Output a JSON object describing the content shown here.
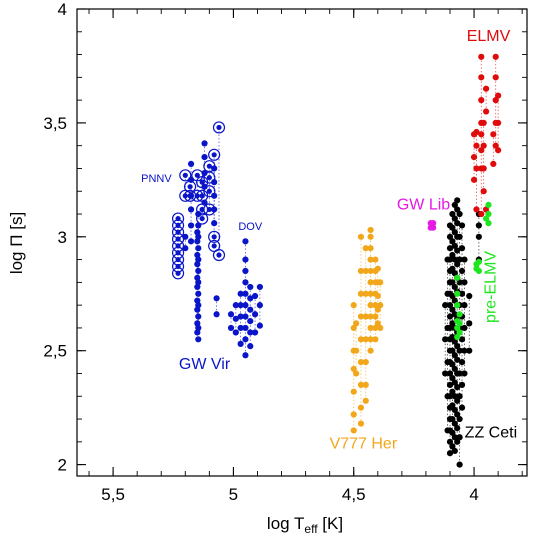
{
  "chart_data": {
    "type": "scatter",
    "title": "",
    "xlabel": "log T",
    "xlabel_sub": "eff",
    "xlabel_unit": " [K]",
    "ylabel": "log Π [s]",
    "xlim": [
      5.65,
      3.78
    ],
    "ylim": [
      1.95,
      4.0
    ],
    "x_reversed": true,
    "grid": false,
    "x_ticks": [
      {
        "value": 5.5,
        "label": "5,5"
      },
      {
        "value": 5.0,
        "label": "5"
      },
      {
        "value": 4.5,
        "label": "4,5"
      },
      {
        "value": 4.0,
        "label": "4"
      }
    ],
    "y_ticks": [
      {
        "value": 2.0,
        "label": "2"
      },
      {
        "value": 2.5,
        "label": "2,5"
      },
      {
        "value": 3.0,
        "label": "3"
      },
      {
        "value": 3.5,
        "label": "3,5"
      },
      {
        "value": 4.0,
        "label": "4"
      }
    ],
    "series": [
      {
        "name": "GW Vir",
        "color": "#0a14c8",
        "columns": [
          {
            "x": 5.146,
            "y": [
              2.55,
              2.6,
              2.65,
              2.7,
              2.75,
              2.8,
              2.85,
              2.9,
              2.95,
              3.0,
              3.05,
              3.1
            ]
          },
          {
            "x": 5.15,
            "y": [
              2.58,
              2.62,
              2.68,
              2.72,
              2.78,
              2.82,
              2.88,
              2.92,
              2.98,
              3.02
            ]
          },
          {
            "x": 5.176,
            "y": [
              2.98,
              3.05,
              3.12,
              3.18,
              3.25,
              3.32
            ]
          },
          {
            "x": 5.12,
            "y": [
              3.15,
              3.22,
              3.28,
              3.35,
              3.41
            ]
          },
          {
            "x": 5.08,
            "y": [
              3.06,
              3.12,
              3.18,
              3.24,
              3.3
            ]
          },
          {
            "x": 5.2,
            "y": [
              3.0,
              2.95
            ]
          },
          {
            "x": 5.07,
            "y": [
              2.66,
              2.73
            ]
          },
          {
            "x": 4.95,
            "y": [
              2.48,
              2.55,
              2.6,
              2.65,
              2.7,
              2.75,
              2.8,
              2.85,
              2.9,
              2.98
            ]
          },
          {
            "x": 4.93,
            "y": [
              2.52,
              2.58,
              2.63,
              2.68,
              2.73,
              2.78
            ]
          },
          {
            "x": 4.97,
            "y": [
              2.53,
              2.6,
              2.65,
              2.7,
              2.75
            ]
          },
          {
            "x": 4.99,
            "y": [
              2.58,
              2.64,
              2.7
            ]
          },
          {
            "x": 5.01,
            "y": [
              2.6,
              2.66
            ]
          },
          {
            "x": 4.91,
            "y": [
              2.58,
              2.66,
              2.74
            ]
          },
          {
            "x": 4.89,
            "y": [
              2.61,
              2.7,
              2.78
            ]
          }
        ]
      },
      {
        "name": "PNNV",
        "color": "#0a14c8",
        "marker": "ring",
        "columns": [
          {
            "x": 5.23,
            "y": [
              2.84,
              2.87,
              2.9,
              2.93,
              2.96,
              2.99,
              3.02,
              3.05,
              3.08
            ]
          },
          {
            "x": 5.2,
            "y": [
              3.18,
              3.27
            ]
          },
          {
            "x": 5.18,
            "y": [
              3.18,
              3.22
            ]
          },
          {
            "x": 5.15,
            "y": [
              3.18,
              3.27
            ]
          },
          {
            "x": 5.13,
            "y": [
              3.08,
              3.12,
              3.18,
              3.24
            ]
          },
          {
            "x": 5.1,
            "y": [
              3.12,
              3.2,
              3.26,
              3.31
            ]
          },
          {
            "x": 5.08,
            "y": [
              2.96,
              3.0,
              3.36
            ]
          },
          {
            "x": 5.06,
            "y": [
              2.92,
              3.48
            ]
          }
        ]
      },
      {
        "name": "V777 Her",
        "color": "#f2a71b",
        "columns": [
          {
            "x": 4.43,
            "y": [
              2.5,
              2.55,
              2.6,
              2.65,
              2.7,
              2.75,
              2.8,
              2.85,
              2.9,
              2.95,
              3.0,
              3.03
            ]
          },
          {
            "x": 4.41,
            "y": [
              2.55,
              2.6,
              2.65,
              2.7,
              2.75,
              2.8,
              2.85,
              2.9
            ]
          },
          {
            "x": 4.4,
            "y": [
              2.62,
              2.68,
              2.74,
              2.8,
              2.86
            ]
          },
          {
            "x": 4.39,
            "y": [
              2.6,
              2.7,
              2.8
            ]
          },
          {
            "x": 4.45,
            "y": [
              2.28,
              2.35,
              2.45,
              2.55,
              2.65,
              2.75,
              2.85,
              2.95
            ]
          },
          {
            "x": 4.47,
            "y": [
              2.18,
              2.25,
              2.35,
              2.45,
              2.55,
              2.65,
              2.75,
              2.85,
              3.0
            ]
          },
          {
            "x": 4.5,
            "y": [
              2.15,
              2.22,
              2.32,
              2.42,
              2.5,
              2.6,
              2.7
            ]
          },
          {
            "x": 4.49,
            "y": [
              2.4,
              2.5,
              2.62
            ]
          }
        ]
      },
      {
        "name": "GW Lib",
        "color": "#e619e6",
        "columns": [
          {
            "x": 4.17,
            "y": [
              3.04,
              3.06
            ]
          },
          {
            "x": 4.18,
            "y": [
              3.04,
              3.06
            ]
          }
        ]
      },
      {
        "name": "ZZ Ceti",
        "color": "#000000",
        "columns": [
          {
            "x": 4.1,
            "y": [
              2.05,
              2.1,
              2.15,
              2.2,
              2.25,
              2.3,
              2.35,
              2.4,
              2.45,
              2.5,
              2.55,
              2.6,
              2.65,
              2.7,
              2.75,
              2.8,
              2.85,
              2.9,
              2.95,
              3.0,
              3.05
            ]
          },
          {
            "x": 4.09,
            "y": [
              2.08,
              2.14,
              2.2,
              2.26,
              2.32,
              2.38,
              2.44,
              2.5,
              2.56,
              2.62,
              2.68,
              2.74,
              2.8,
              2.86,
              2.92,
              2.98,
              3.04,
              3.1
            ]
          },
          {
            "x": 4.08,
            "y": [
              2.06,
              2.12,
              2.18,
              2.24,
              2.3,
              2.36,
              2.42,
              2.48,
              2.54,
              2.6,
              2.66,
              2.72,
              2.78,
              2.84,
              2.9,
              2.96,
              3.02,
              3.08,
              3.14
            ]
          },
          {
            "x": 4.07,
            "y": [
              2.1,
              2.16,
              2.22,
              2.28,
              2.34,
              2.4,
              2.46,
              2.52,
              2.58,
              2.64,
              2.7,
              2.76,
              2.82,
              2.88,
              2.94,
              3.0,
              3.06,
              3.12,
              3.16
            ]
          },
          {
            "x": 4.06,
            "y": [
              2.0,
              2.12,
              2.2,
              2.3,
              2.4,
              2.5,
              2.6,
              2.7,
              2.8,
              2.9,
              3.0,
              3.1
            ]
          },
          {
            "x": 4.05,
            "y": [
              2.25,
              2.35,
              2.45,
              2.55,
              2.65,
              2.75,
              2.85,
              2.95,
              3.05
            ]
          },
          {
            "x": 4.04,
            "y": [
              2.4,
              2.5,
              2.6,
              2.7,
              2.8,
              2.9
            ]
          },
          {
            "x": 4.11,
            "y": [
              2.15,
              2.3,
              2.45,
              2.6,
              2.75,
              2.9
            ]
          },
          {
            "x": 4.12,
            "y": [
              2.4,
              2.55,
              2.7
            ]
          },
          {
            "x": 4.02,
            "y": [
              2.5,
              2.62,
              2.74
            ]
          },
          {
            "x": 3.98,
            "y": [
              2.9,
              3.0,
              3.05,
              3.1
            ]
          }
        ]
      },
      {
        "name": "ELMV",
        "color": "#e00b0b",
        "columns": [
          {
            "x": 3.97,
            "y": [
              3.1,
              3.3,
              3.38,
              3.45,
              3.5,
              3.6,
              3.7,
              3.79
            ]
          },
          {
            "x": 3.96,
            "y": [
              3.2,
              3.3,
              3.4,
              3.5
            ]
          },
          {
            "x": 3.99,
            "y": [
              3.12,
              3.3,
              3.4,
              3.46
            ]
          },
          {
            "x": 4.0,
            "y": [
              3.25,
              3.35,
              3.45
            ]
          },
          {
            "x": 3.95,
            "y": [
              3.55,
              3.65
            ]
          },
          {
            "x": 3.91,
            "y": [
              3.4,
              3.5,
              3.6,
              3.7,
              3.79
            ]
          },
          {
            "x": 3.9,
            "y": [
              3.38,
              3.5,
              3.62
            ]
          },
          {
            "x": 3.92,
            "y": [
              3.32,
              3.45
            ]
          },
          {
            "x": 3.95,
            "y": [
              3.12
            ]
          }
        ]
      },
      {
        "name": "pre-ELMV",
        "color": "#1ee61e",
        "columns": [
          {
            "x": 3.94,
            "y": [
              3.06,
              3.1,
              3.14
            ]
          },
          {
            "x": 3.95,
            "y": [
              3.08
            ]
          },
          {
            "x": 3.99,
            "y": [
              2.86,
              2.88
            ]
          },
          {
            "x": 3.98,
            "y": [
              2.85,
              2.89
            ]
          },
          {
            "x": 4.07,
            "y": [
              2.56,
              2.6,
              2.63,
              2.7,
              2.75,
              2.82
            ]
          },
          {
            "x": 4.06,
            "y": [
              2.58,
              2.62,
              2.66
            ]
          }
        ]
      }
    ],
    "annotations": [
      {
        "text": "GW Vir",
        "x": 5.12,
        "y": 2.42,
        "color": "#0a14c8",
        "size": 16
      },
      {
        "text": "PNNV",
        "x": 5.32,
        "y": 3.24,
        "color": "#0a14c8",
        "size": 11
      },
      {
        "text": "DOV",
        "x": 4.93,
        "y": 3.03,
        "color": "#0a14c8",
        "size": 11
      },
      {
        "text": "V777 Her",
        "x": 4.46,
        "y": 2.07,
        "color": "#f2a71b",
        "size": 16
      },
      {
        "text": "GW Lib",
        "x": 4.21,
        "y": 3.12,
        "color": "#e619e6",
        "size": 16
      },
      {
        "text": "ZZ Ceti",
        "x": 3.93,
        "y": 2.12,
        "color": "#000000",
        "size": 16
      },
      {
        "text": "ELMV",
        "x": 3.94,
        "y": 3.86,
        "color": "#e00b0b",
        "size": 16
      },
      {
        "text": "pre-ELMV",
        "x": 3.91,
        "y": 2.78,
        "color": "#1ee61e",
        "size": 16,
        "rotate": -90
      }
    ]
  }
}
